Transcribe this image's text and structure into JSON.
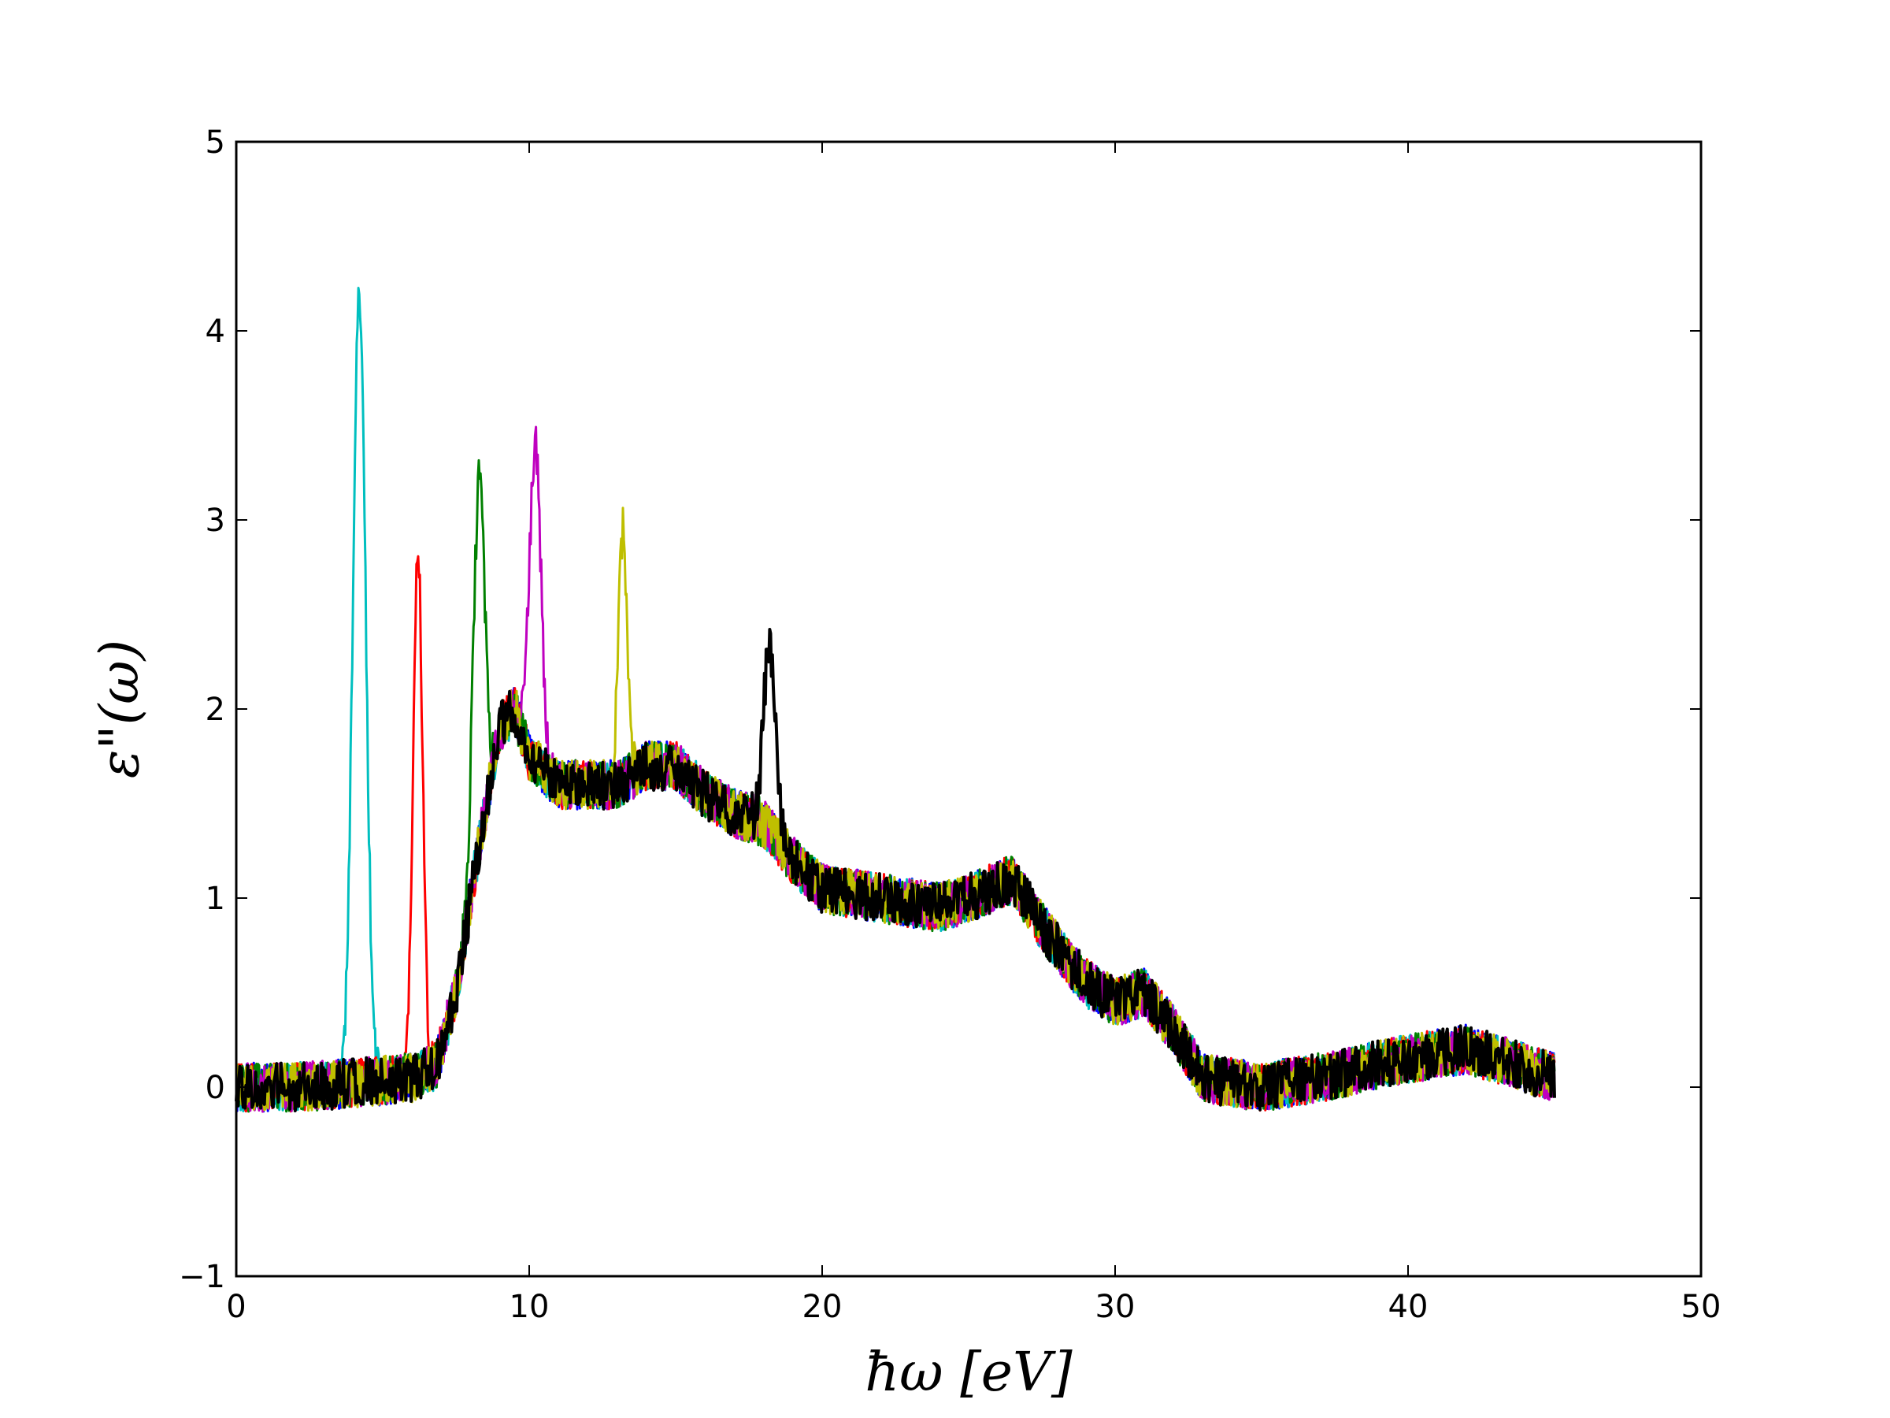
{
  "chart_data": {
    "type": "line",
    "xlabel": "ħω   [eV]",
    "ylabel": "ε\"(ω)",
    "xlim": [
      0,
      50
    ],
    "ylim": [
      -1,
      5
    ],
    "xticks": [
      0,
      10,
      20,
      30,
      40,
      50
    ],
    "yticks": [
      -1,
      0,
      1,
      2,
      3,
      4,
      5
    ],
    "x_tick_labels": [
      "0",
      "10",
      "20",
      "30",
      "40",
      "50"
    ],
    "y_tick_labels": [
      "−1",
      "0",
      "1",
      "2",
      "3",
      "4",
      "5"
    ],
    "grid": false,
    "legend": "none",
    "noise_amplitude": 0.13,
    "x_range_data": [
      0,
      45
    ],
    "baseline": [
      [
        0,
        0.0
      ],
      [
        2,
        0.0
      ],
      [
        4,
        0.02
      ],
      [
        6,
        0.05
      ],
      [
        6.8,
        0.1
      ],
      [
        7.5,
        0.5
      ],
      [
        8.2,
        1.2
      ],
      [
        9,
        1.9
      ],
      [
        9.5,
        2.0
      ],
      [
        10,
        1.75
      ],
      [
        11,
        1.6
      ],
      [
        12,
        1.6
      ],
      [
        13,
        1.6
      ],
      [
        14,
        1.7
      ],
      [
        15,
        1.7
      ],
      [
        16,
        1.55
      ],
      [
        17,
        1.45
      ],
      [
        18,
        1.4
      ],
      [
        19,
        1.2
      ],
      [
        20,
        1.05
      ],
      [
        22,
        1.0
      ],
      [
        24,
        0.95
      ],
      [
        25,
        1.0
      ],
      [
        26.5,
        1.1
      ],
      [
        27.5,
        0.85
      ],
      [
        29,
        0.55
      ],
      [
        30,
        0.45
      ],
      [
        31,
        0.5
      ],
      [
        32,
        0.3
      ],
      [
        33,
        0.05
      ],
      [
        35,
        0.0
      ],
      [
        37,
        0.05
      ],
      [
        40,
        0.15
      ],
      [
        42,
        0.2
      ],
      [
        44,
        0.1
      ],
      [
        45,
        0.05
      ]
    ],
    "series": [
      {
        "color": "#0000ff",
        "peak_x": null,
        "peak_y": null,
        "width": 0
      },
      {
        "color": "#00bfbf",
        "peak_x": 4.2,
        "peak_y": 4.15,
        "width": 0.22
      },
      {
        "color": "#ff0000",
        "peak_x": 6.2,
        "peak_y": 2.85,
        "width": 0.16
      },
      {
        "color": "#008000",
        "peak_x": 8.3,
        "peak_y": 3.2,
        "width": 0.2
      },
      {
        "color": "#bf00bf",
        "peak_x": 10.2,
        "peak_y": 3.4,
        "width": 0.2
      },
      {
        "color": "#bfbf00",
        "peak_x": 13.2,
        "peak_y": 2.95,
        "width": 0.15
      },
      {
        "color": "#000000",
        "peak_x": 18.2,
        "peak_y": 2.35,
        "width": 0.2
      }
    ]
  }
}
